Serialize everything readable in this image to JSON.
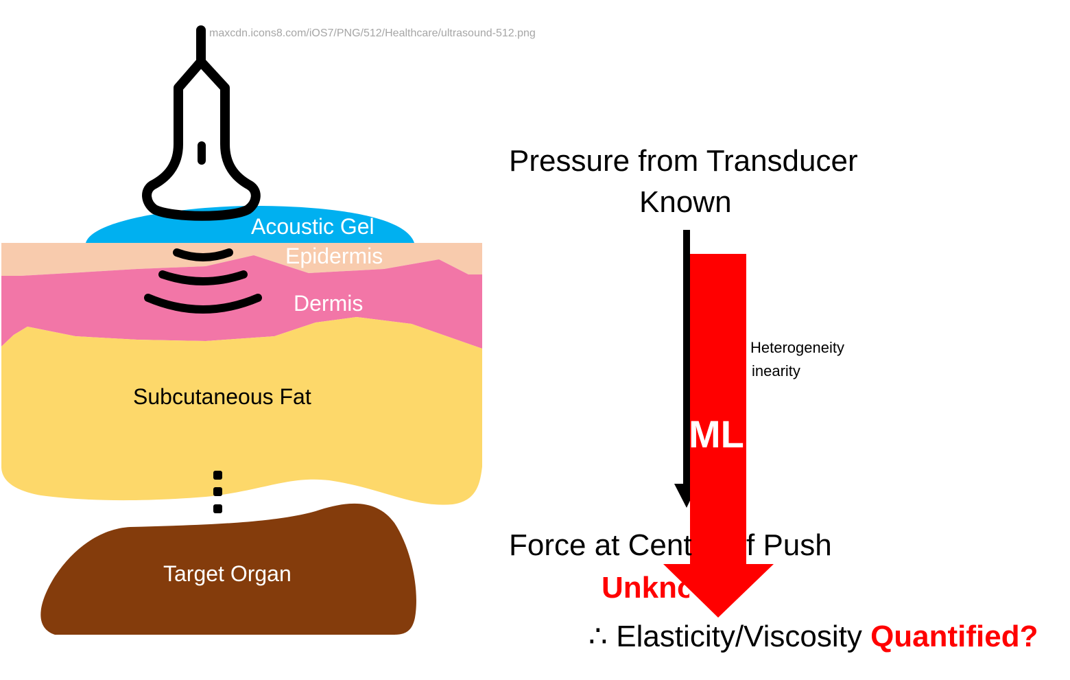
{
  "image_credit": "maxcdn.icons8.com/iOS7/PNG/512/Healthcare/ultrasound-512.png",
  "layers": {
    "gel": "Acoustic Gel",
    "epidermis": "Epidermis",
    "dermis": "Dermis",
    "fat": "Subcutaneous Fat",
    "organ": "Target Organ"
  },
  "right": {
    "pressure_line1": "Pressure from Transducer",
    "pressure_line2": "Known",
    "factor1": "Heterogeneity",
    "factor2": "inearity",
    "ml": "ML",
    "force": "Force at Cent",
    "force_tail": "f Push",
    "unknown": "Unkno",
    "therefore": "∴ Elasticity/Viscosity ",
    "quantified": "Quantified?"
  },
  "colors": {
    "gel": "#00b0f0",
    "epidermis": "#f8cbad",
    "dermis": "#f276a7",
    "fat": "#fdd86a",
    "organ": "#843c0c",
    "arrow": "#ff0000"
  }
}
